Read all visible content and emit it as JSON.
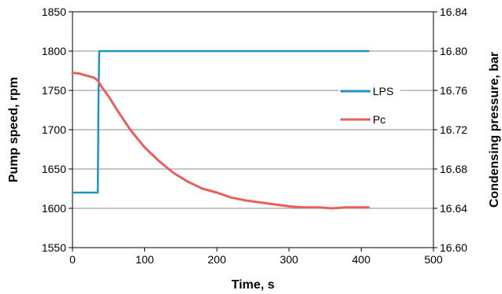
{
  "chart_data": {
    "type": "line",
    "xlabel": "Time, s",
    "ylabel_left": "Pump speed, rpm",
    "ylabel_right": "Condensing pressure, bar",
    "xlim": [
      0,
      500
    ],
    "ylim_left": [
      1550,
      1850
    ],
    "ylim_right": [
      16.6,
      16.84
    ],
    "x_ticks": [
      "0",
      "100",
      "200",
      "300",
      "400",
      "500"
    ],
    "y_ticks_left": [
      "1550",
      "1600",
      "1650",
      "1700",
      "1750",
      "1800",
      "1850"
    ],
    "y_ticks_right": [
      "16.60",
      "16.64",
      "16.68",
      "16.72",
      "16.76",
      "16.80",
      "16.84"
    ],
    "grid": "horizontal",
    "legend_position": "right",
    "series": [
      {
        "name": "LPS",
        "axis": "left",
        "color": "#1f93c8",
        "x": [
          0,
          35,
          35,
          36,
          37,
          410
        ],
        "y": [
          1620,
          1620,
          1620,
          1740,
          1800,
          1800
        ]
      },
      {
        "name": "Pc",
        "axis": "right",
        "color": "#e8605c",
        "x": [
          0,
          10,
          20,
          30,
          35,
          40,
          50,
          60,
          70,
          80,
          90,
          100,
          120,
          140,
          160,
          180,
          200,
          220,
          240,
          260,
          280,
          300,
          320,
          340,
          360,
          380,
          400,
          410
        ],
        "y": [
          16.778,
          16.777,
          16.775,
          16.773,
          16.77,
          16.764,
          16.754,
          16.742,
          16.731,
          16.72,
          16.711,
          16.702,
          16.688,
          16.676,
          16.667,
          16.66,
          16.656,
          16.651,
          16.648,
          16.646,
          16.644,
          16.642,
          16.641,
          16.641,
          16.64,
          16.641,
          16.641,
          16.641
        ]
      }
    ]
  }
}
